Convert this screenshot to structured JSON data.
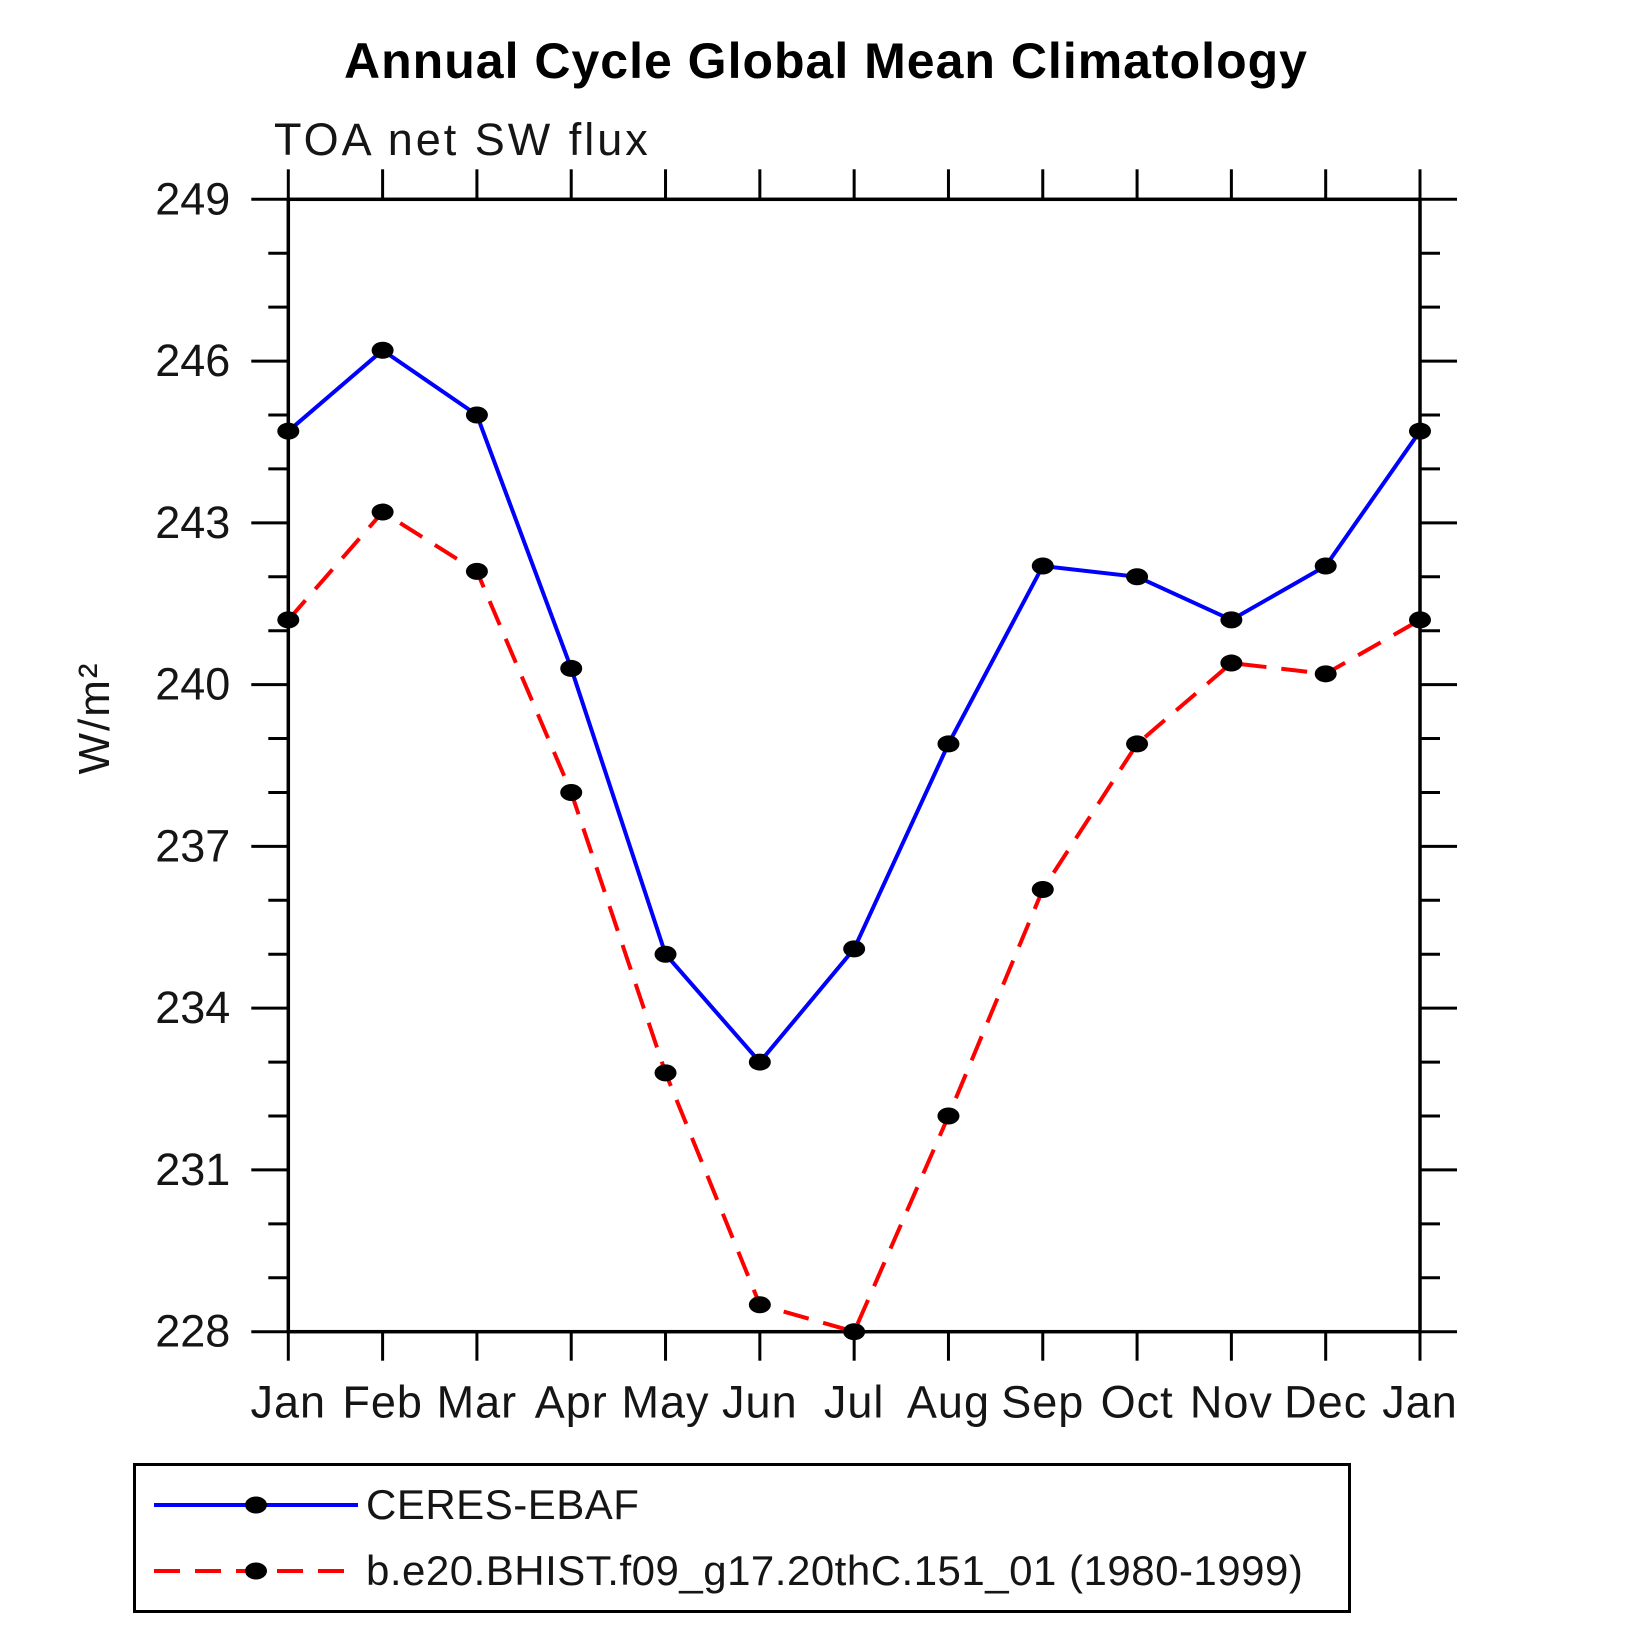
{
  "page": {
    "background": "#ffffff"
  },
  "chart_data": {
    "type": "line",
    "title": "Annual Cycle Global Mean Climatology",
    "subtitle": "TOA net SW flux",
    "ylabel": "W/m²",
    "categories": [
      "Jan",
      "Feb",
      "Mar",
      "Apr",
      "May",
      "Jun",
      "Jul",
      "Aug",
      "Sep",
      "Oct",
      "Nov",
      "Dec",
      "Jan"
    ],
    "ylim": [
      228,
      249
    ],
    "ytick_step": 3,
    "yminor_step": 1,
    "grid": false,
    "legend_position": "bottom-left-box",
    "axis_color": "#000000",
    "marker": {
      "shape": "ellipse",
      "color": "#000000"
    },
    "series": [
      {
        "name": "CERES-EBAF",
        "color": "#0000ff",
        "line_style": "solid",
        "values": [
          244.7,
          246.2,
          245.0,
          240.3,
          235.0,
          233.0,
          235.1,
          238.9,
          242.2,
          242.0,
          241.2,
          242.2,
          244.7
        ]
      },
      {
        "name": "b.e20.BHIST.f09_g17.20thC.151_01 (1980-1999)",
        "color": "#ff0000",
        "line_style": "dashed",
        "values": [
          241.2,
          243.2,
          242.1,
          238.0,
          232.8,
          228.5,
          228.0,
          232.0,
          236.2,
          238.9,
          240.4,
          240.2,
          241.2
        ]
      }
    ]
  }
}
